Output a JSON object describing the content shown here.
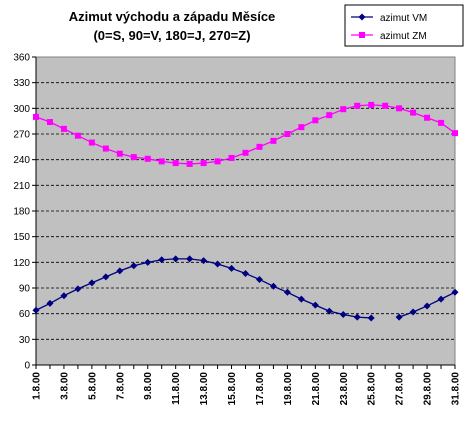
{
  "chart_data": {
    "type": "line",
    "title": "Azimut východu a západu Měsíce",
    "subtitle": "(0=S, 90=V, 180=J, 270=Z)",
    "xlabel": "",
    "ylabel": "",
    "ylim": [
      0,
      360
    ],
    "yticks": [
      0,
      30,
      60,
      90,
      120,
      150,
      180,
      210,
      240,
      270,
      300,
      330,
      360
    ],
    "x_tick_labels": [
      "1.8.00",
      "3.8.00",
      "5.8.00",
      "7.8.00",
      "9.8.00",
      "11.8.00",
      "13.8.00",
      "15.8.00",
      "17.8.00",
      "19.8.00",
      "21.8.00",
      "23.8.00",
      "25.8.00",
      "27.8.00",
      "29.8.00",
      "31.8.00"
    ],
    "categories": [
      "1.8.00",
      "2.8.00",
      "3.8.00",
      "4.8.00",
      "5.8.00",
      "6.8.00",
      "7.8.00",
      "8.8.00",
      "9.8.00",
      "10.8.00",
      "11.8.00",
      "12.8.00",
      "13.8.00",
      "14.8.00",
      "15.8.00",
      "16.8.00",
      "17.8.00",
      "18.8.00",
      "19.8.00",
      "20.8.00",
      "21.8.00",
      "22.8.00",
      "23.8.00",
      "24.8.00",
      "25.8.00",
      "26.8.00",
      "27.8.00",
      "28.8.00",
      "29.8.00",
      "30.8.00",
      "31.8.00"
    ],
    "grid": "horizontal dashed",
    "legend_position": "top-right",
    "series": [
      {
        "name": "azimut VM",
        "color": "#000080",
        "marker": "diamond",
        "values": [
          64,
          72,
          81,
          89,
          96,
          103,
          110,
          116,
          120,
          123,
          124,
          124,
          122,
          118,
          113,
          107,
          100,
          92,
          85,
          77,
          70,
          63,
          59,
          56,
          55,
          null,
          56,
          62,
          69,
          77,
          85
        ]
      },
      {
        "name": "azimut ZM",
        "color": "#FF00FF",
        "marker": "square",
        "values": [
          290,
          284,
          276,
          268,
          260,
          253,
          247,
          243,
          241,
          238,
          236,
          235,
          236,
          238,
          242,
          248,
          255,
          262,
          270,
          278,
          286,
          292,
          299,
          303,
          304,
          303,
          300,
          295,
          289,
          283,
          271
        ]
      }
    ]
  }
}
